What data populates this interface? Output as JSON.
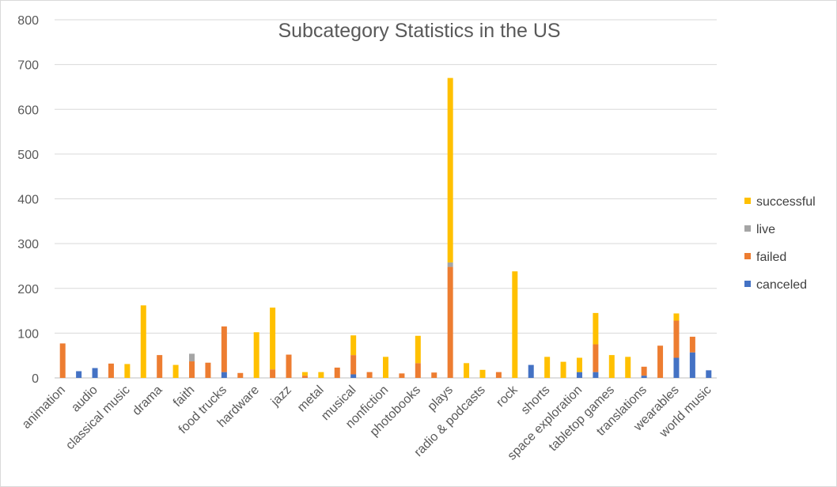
{
  "chart_data": {
    "type": "bar",
    "stacked": true,
    "title": "Subcategory Statistics in the US",
    "xlabel": "",
    "ylabel": "",
    "ylim": [
      0,
      800
    ],
    "yticks": [
      "0",
      "100",
      "200",
      "300",
      "400",
      "500",
      "600",
      "700",
      "800"
    ],
    "grid": true,
    "legend_position": "right",
    "label_every": 2,
    "categories": [
      "animation",
      "",
      "audio",
      "",
      "classical music",
      "",
      "drama",
      "",
      "faith",
      "",
      "food trucks",
      "",
      "hardware",
      "",
      "jazz",
      "",
      "metal",
      "",
      "musical",
      "",
      "nonfiction",
      "",
      "photobooks",
      "",
      "plays",
      "",
      "radio & podcasts",
      "",
      "rock",
      "",
      "shorts",
      "",
      "space exploration",
      "",
      "tabletop games",
      "",
      "translations",
      "",
      "wearables",
      "",
      "world music"
    ],
    "series": [
      {
        "name": "canceled",
        "color": "#4472c4",
        "values": [
          0,
          15,
          22,
          0,
          0,
          0,
          0,
          0,
          0,
          0,
          13,
          0,
          0,
          0,
          0,
          0,
          0,
          0,
          8,
          0,
          0,
          0,
          0,
          0,
          0,
          0,
          0,
          0,
          0,
          29,
          0,
          0,
          13,
          13,
          0,
          0,
          5,
          0,
          45,
          57,
          17
        ]
      },
      {
        "name": "failed",
        "color": "#ed7d31",
        "values": [
          77,
          0,
          0,
          32,
          0,
          0,
          51,
          0,
          37,
          34,
          102,
          11,
          0,
          19,
          52,
          5,
          0,
          23,
          43,
          13,
          0,
          10,
          33,
          12,
          248,
          0,
          0,
          13,
          0,
          0,
          0,
          0,
          0,
          62,
          0,
          0,
          20,
          72,
          83,
          35,
          0
        ]
      },
      {
        "name": "live",
        "color": "#a5a5a5",
        "values": [
          0,
          0,
          0,
          0,
          0,
          0,
          0,
          0,
          17,
          0,
          0,
          0,
          0,
          0,
          0,
          0,
          0,
          0,
          0,
          0,
          0,
          0,
          0,
          0,
          10,
          0,
          0,
          0,
          0,
          0,
          0,
          0,
          0,
          0,
          0,
          0,
          0,
          0,
          0,
          0,
          0
        ]
      },
      {
        "name": "successful",
        "color": "#ffc000",
        "values": [
          0,
          0,
          0,
          0,
          31,
          162,
          0,
          29,
          0,
          0,
          0,
          0,
          102,
          138,
          0,
          8,
          13,
          0,
          44,
          0,
          47,
          0,
          61,
          0,
          412,
          33,
          18,
          0,
          238,
          0,
          47,
          36,
          32,
          70,
          51,
          47,
          0,
          0,
          16,
          0,
          0
        ]
      }
    ]
  }
}
